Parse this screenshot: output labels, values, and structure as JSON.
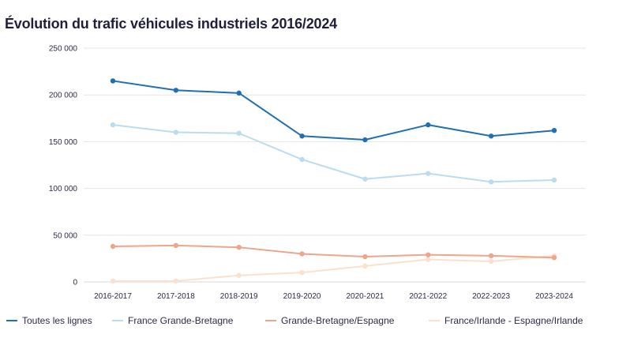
{
  "chart_data": {
    "type": "line",
    "title": "Évolution du trafic véhicules industriels 2016/2024",
    "xlabel": "",
    "ylabel": "",
    "categories": [
      "2016-2017",
      "2017-2018",
      "2018-2019",
      "2019-2020",
      "2020-2021",
      "2021-2022",
      "2022-2023",
      "2023-2024"
    ],
    "ylim": [
      0,
      250000
    ],
    "yticks": [
      0,
      50000,
      100000,
      150000,
      200000,
      250000
    ],
    "ytick_labels": [
      "0",
      "50 000",
      "100 000",
      "150 000",
      "200 000",
      "250 000"
    ],
    "grid": true,
    "legend_position": "bottom",
    "series": [
      {
        "name": "Toutes les lignes",
        "color": "#1f6fb2",
        "values": [
          215000,
          205000,
          202000,
          156000,
          152000,
          168000,
          156000,
          162000
        ]
      },
      {
        "name": "France Grande-Bretagne",
        "color": "#b9dcf0",
        "values": [
          168000,
          160000,
          159000,
          131000,
          110000,
          116000,
          107000,
          109000
        ]
      },
      {
        "name": "Grande-Bretagne/Espagne",
        "color": "#eda58c",
        "values": [
          38000,
          39000,
          37000,
          30000,
          27000,
          29000,
          28000,
          26000
        ]
      },
      {
        "name": "France/Irlande - Espagne/Irlande",
        "color": "#fbe1cd",
        "values": [
          1000,
          1000,
          7000,
          10000,
          17000,
          24000,
          22000,
          28000
        ]
      }
    ]
  }
}
